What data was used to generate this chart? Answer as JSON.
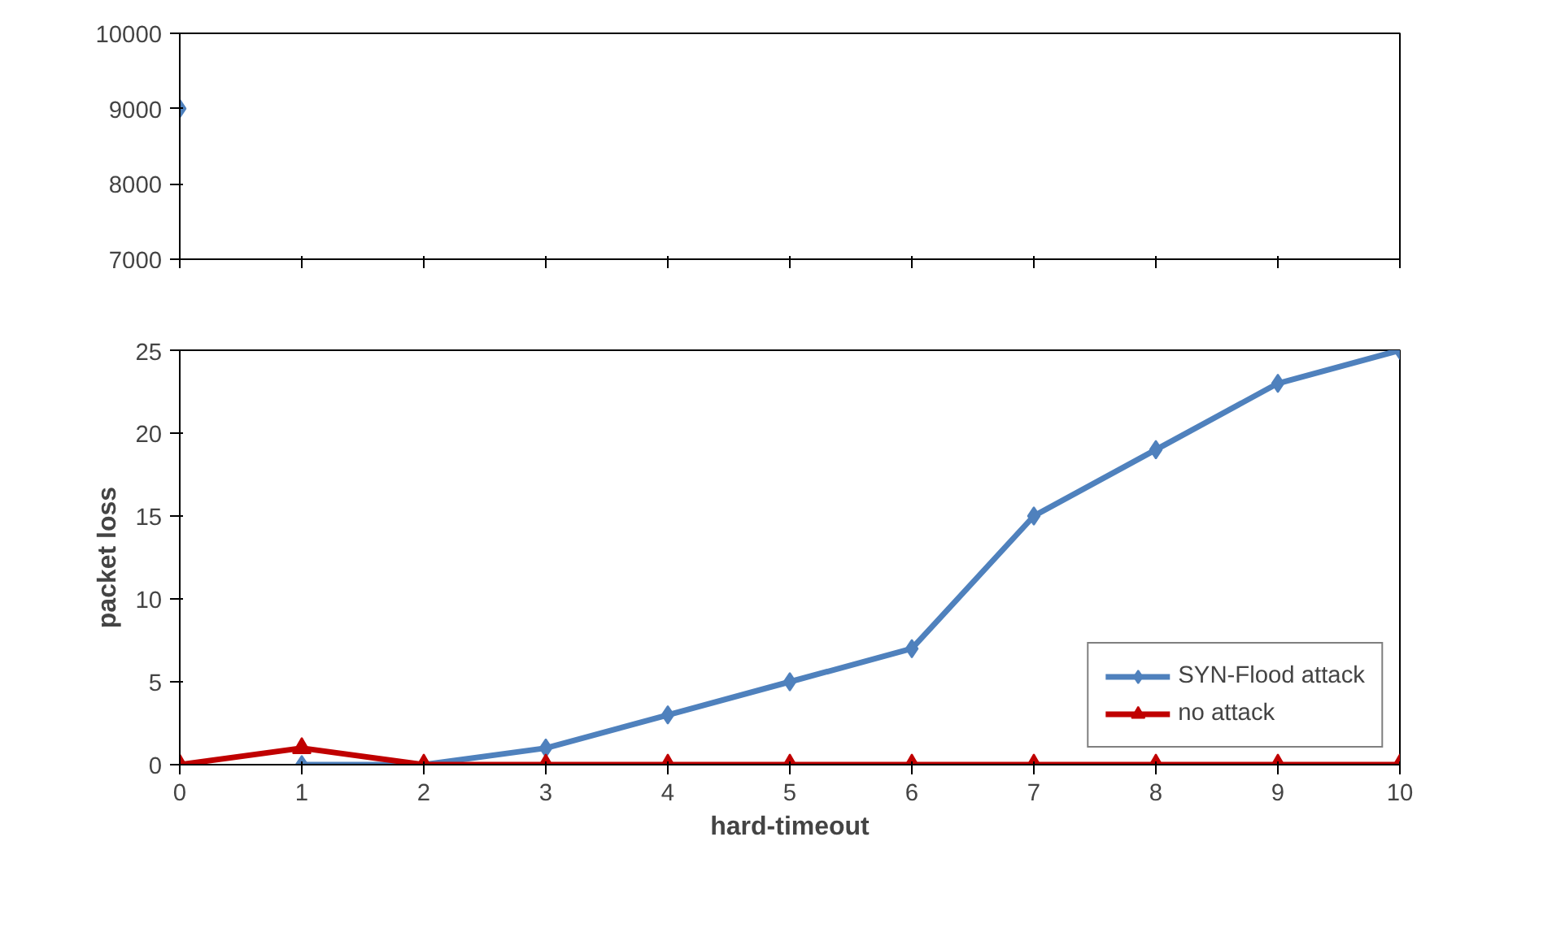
{
  "chart_data": [
    {
      "type": "line",
      "x": [
        0
      ],
      "xlim": [
        0,
        10
      ],
      "xticks": [
        0,
        1,
        2,
        3,
        4,
        5,
        6,
        7,
        8,
        9,
        10
      ],
      "ylim": [
        7000,
        10000
      ],
      "yticks": [
        7000,
        8000,
        9000,
        10000
      ],
      "tick_labels": "y",
      "grid": false,
      "legend": false,
      "series": [
        {
          "color": "#4f81bd",
          "marker": "diamond",
          "values": [
            9000
          ]
        }
      ]
    },
    {
      "type": "line",
      "x": [
        0,
        1,
        2,
        3,
        4,
        5,
        6,
        7,
        8,
        9,
        10
      ],
      "xlim": [
        0,
        10
      ],
      "xticks": [
        0,
        1,
        2,
        3,
        4,
        5,
        6,
        7,
        8,
        9,
        10
      ],
      "ylim": [
        0,
        25
      ],
      "yticks": [
        0,
        5,
        10,
        15,
        20,
        25
      ],
      "xlabel": "hard-timeout",
      "ylabel": "packet loss",
      "grid": false,
      "legend": "bottom right",
      "series": [
        {
          "name": "SYN-Flood attack",
          "color": "#4f81bd",
          "marker": "diamond",
          "values": [
            null,
            0,
            0,
            1,
            3,
            5,
            7,
            15,
            19,
            23,
            25
          ]
        },
        {
          "name": "no attack",
          "color": "#c00000",
          "marker": "triangle",
          "values": [
            0,
            1,
            0,
            0,
            0,
            0,
            0,
            0,
            0,
            0,
            0
          ]
        }
      ]
    }
  ]
}
